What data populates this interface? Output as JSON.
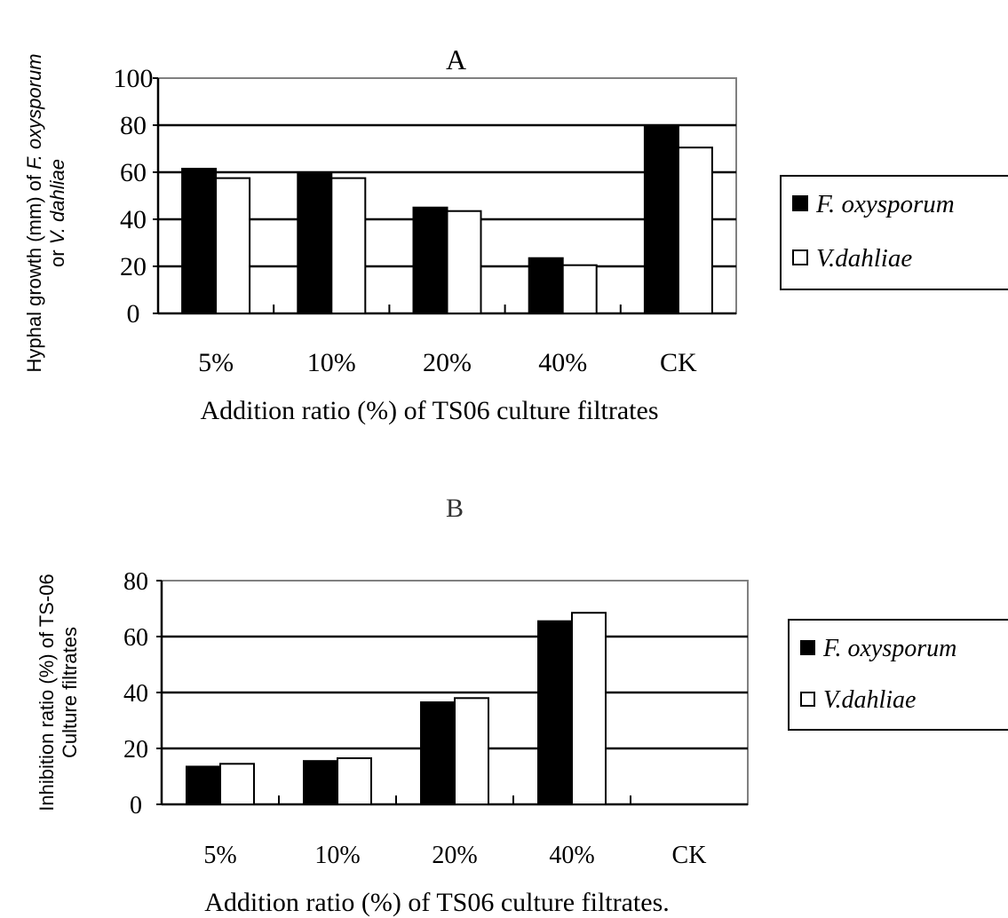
{
  "chart_data": [
    {
      "type": "bar",
      "title": "A",
      "categories": [
        "5%",
        "10%",
        "20%",
        "40%",
        "CK"
      ],
      "series": [
        {
          "name": "F. oxysporum",
          "values": [
            61.5,
            59.5,
            45,
            23.5,
            80
          ],
          "color": "#000000"
        },
        {
          "name": "V.dahliae",
          "values": [
            57.5,
            57.5,
            43.5,
            20.5,
            70.5
          ],
          "color": "#ffffff"
        }
      ],
      "ylabel_parts": [
        "Hyphal growth (mm) of ",
        "F. oxysporum",
        "or ",
        "V. dahliae"
      ],
      "xlabel": "Addition ratio (%) of TS06 culture filtrates",
      "ylim": [
        0,
        100
      ],
      "yticks": [
        0,
        20,
        40,
        60,
        80,
        100
      ],
      "grid": true,
      "legend_position": "right"
    },
    {
      "type": "bar",
      "title": "B",
      "categories": [
        "5%",
        "10%",
        "20%",
        "40%",
        "CK"
      ],
      "series": [
        {
          "name": "F. oxysporum",
          "values": [
            13.5,
            15.5,
            36.5,
            65.5,
            0
          ],
          "color": "#000000"
        },
        {
          "name": "V.dahliae",
          "values": [
            14.5,
            16.5,
            38,
            68.5,
            0
          ],
          "color": "#ffffff"
        }
      ],
      "ylabel_lines": [
        "Inhibition ratio (%) of TS-06",
        "Culture filtrates"
      ],
      "xlabel": "Addition ratio (%) of TS06 culture filtrates.",
      "ylim": [
        0,
        80
      ],
      "yticks": [
        0,
        20,
        40,
        60,
        80
      ],
      "grid": true,
      "legend_position": "right"
    }
  ]
}
